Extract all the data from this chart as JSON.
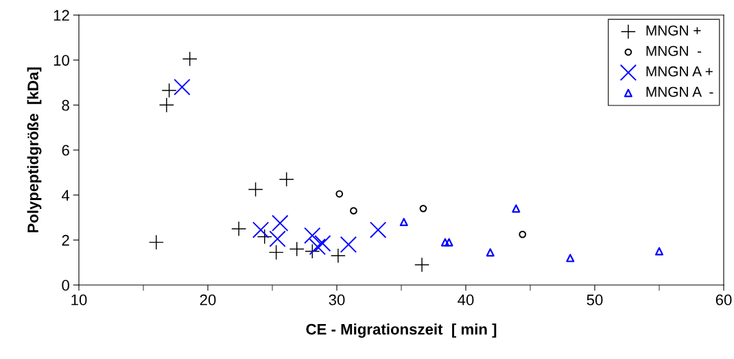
{
  "chart_data": {
    "type": "scatter",
    "xlabel": "CE - Migrationszeit  [ min ]",
    "ylabel": "Polypeptidgröße  [kDa]",
    "xlim": [
      10,
      60
    ],
    "xticks": [
      10,
      20,
      30,
      40,
      50,
      60
    ],
    "ylim": [
      0,
      12
    ],
    "yticks": [
      0,
      2,
      4,
      6,
      8,
      10,
      12
    ],
    "grid": false,
    "legend": "top right",
    "series": [
      {
        "name": "MNGN +",
        "color": "#000000",
        "x": [
          16.0,
          16.8,
          17.0,
          18.6,
          22.4,
          23.7,
          24.4,
          25.3,
          26.1,
          26.9,
          28.1,
          30.1,
          36.6
        ],
        "values": [
          1.9,
          8.0,
          8.65,
          10.05,
          2.5,
          4.25,
          2.15,
          1.45,
          4.7,
          1.6,
          1.5,
          1.3,
          0.9
        ]
      },
      {
        "name": "MNGN  -",
        "color": "#000000",
        "marker": "circle",
        "x": [
          30.2,
          31.3,
          36.7,
          44.4
        ],
        "values": [
          4.05,
          3.3,
          3.4,
          2.25
        ]
      },
      {
        "name": "MNGN A +",
        "color": "#0000ff",
        "marker": "cross",
        "x": [
          18.0,
          24.1,
          25.6,
          25.4,
          28.1,
          28.5,
          28.9,
          30.9,
          33.2
        ],
        "values": [
          8.8,
          2.45,
          2.75,
          2.05,
          2.2,
          1.7,
          1.85,
          1.8,
          2.45
        ]
      },
      {
        "name": "MNGN A  -",
        "color": "#0000ff",
        "marker": "triangle",
        "x": [
          35.2,
          38.4,
          38.7,
          41.9,
          43.9,
          48.1,
          55.0
        ],
        "values": [
          2.8,
          1.9,
          1.9,
          1.45,
          3.4,
          1.2,
          1.5
        ]
      }
    ]
  }
}
